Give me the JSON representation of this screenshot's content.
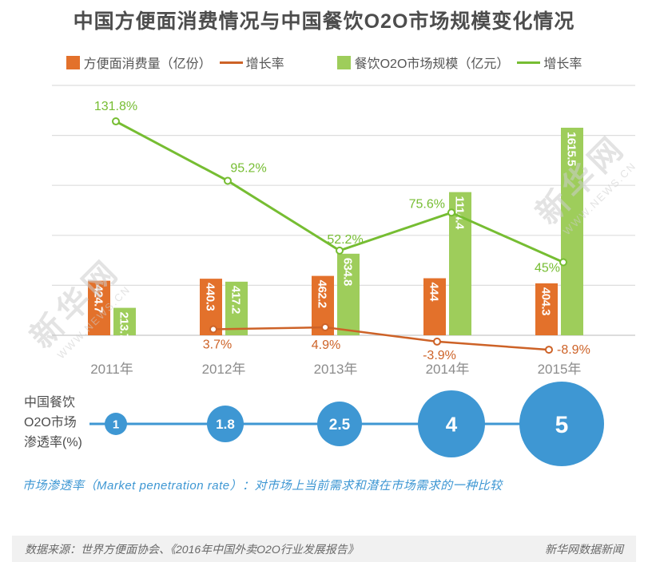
{
  "title": "中国方便面消费情况与中国餐饮O2O市场规模变化情况",
  "legend": {
    "noodle_bar_label": "方便面消费量（亿份）",
    "noodle_line_label": "增长率",
    "o2o_bar_label": "餐饮O2O市场规模（亿元）",
    "o2o_line_label": "增长率"
  },
  "chart_data": {
    "type": "bar",
    "subtype": "grouped bars with two growth-rate lines",
    "categories": [
      "2011年",
      "2012年",
      "2013年",
      "2014年",
      "2015年"
    ],
    "series": [
      {
        "name": "方便面消费量（亿份）",
        "type": "bar",
        "color": "#e3712b",
        "values": [
          424.7,
          440.3,
          462.2,
          444,
          404.3
        ],
        "labels": [
          "424.7",
          "440.3",
          "462.2",
          "444",
          "404.3"
        ]
      },
      {
        "name": "餐饮O2O市场规模（亿元）",
        "type": "bar",
        "color": "#9ecd5b",
        "values": [
          213.7,
          417.2,
          634.8,
          1114.4,
          1615.5
        ],
        "labels": [
          "213.7",
          "417.2",
          "634.8",
          "1114.4",
          "1615.5"
        ]
      },
      {
        "name": "方便面消费量增长率",
        "type": "line",
        "color": "#cd6227",
        "values": [
          null,
          3.7,
          4.9,
          -3.9,
          -8.9
        ],
        "labels": [
          null,
          "3.7%",
          "4.9%",
          "-3.9%",
          "-8.9%"
        ]
      },
      {
        "name": "餐饮O2O市场规模增长率",
        "type": "line",
        "color": "#76bd32",
        "values": [
          131.8,
          95.2,
          52.2,
          75.6,
          45
        ],
        "labels": [
          "131.8%",
          "95.2%",
          "52.2%",
          "75.6%",
          "45%"
        ]
      }
    ],
    "value_axis_visible": false,
    "bar_axis_max": 1615.5,
    "pct_axis_zero_at_baseline": true,
    "gridlines": 6,
    "grid_on": true,
    "legend_position": "top",
    "xlabel": "",
    "ylabel": ""
  },
  "bubble_chart": {
    "type": "bubble",
    "axis_label_lines": [
      "中国餐饮",
      "O2O市场",
      "渗透率(%)"
    ],
    "categories": [
      "2011年",
      "2012年",
      "2013年",
      "2014年",
      "2015年"
    ],
    "values": [
      1,
      1.8,
      2.5,
      4,
      5
    ],
    "labels": [
      "1",
      "1.8",
      "2.5",
      "4",
      "5"
    ],
    "color": "#3e97d3"
  },
  "note": "市场渗透率（Market penetration rate）：对市场上当前需求和潜在市场需求的一种比较",
  "footer": {
    "source": "数据来源：世界方便面协会、《2016年中国外卖O2O行业发展报告》",
    "credit": "新华网数据新闻"
  },
  "watermark": {
    "text": "新华网",
    "subtext": "WWW.NEWS.CN"
  },
  "colors": {
    "noodle_orange": "#e3712b",
    "o2o_green": "#9ecd5b",
    "line_orange": "#cd6227",
    "line_green": "#76bd32",
    "bubble_blue": "#3e97d3",
    "title_text": "#4d4d4d",
    "axis_text": "#8c8c8c",
    "gridline": "#dddddd"
  }
}
